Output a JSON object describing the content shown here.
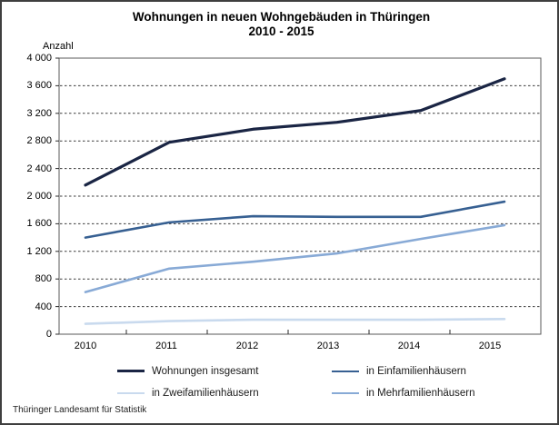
{
  "chart_data": {
    "type": "line",
    "title": "Wohnungen in neuen Wohngebäuden in Thüringen",
    "subtitle": "2010 - 2015",
    "ylabel": "Anzahl",
    "categories": [
      "2010",
      "2011",
      "2012",
      "2013",
      "2014",
      "2015"
    ],
    "ylim": [
      0,
      4000
    ],
    "ytick_step": 400,
    "ytick_labels": [
      "0",
      "400",
      "800",
      "1 200",
      "1 600",
      "2 000",
      "2 400",
      "2 800",
      "3 200",
      "3 600",
      "4 000"
    ],
    "grid": "horizontal dashed gridlines, plot area boxed",
    "legend_position": "bottom, 2 columns",
    "series": [
      {
        "name": "Wohnungen insgesamt",
        "color": "#1a2544",
        "line_width": 3.2,
        "values": [
          2160,
          2780,
          2970,
          3070,
          3240,
          3700
        ]
      },
      {
        "name": "in Einfamilienhäusern",
        "color": "#376092",
        "line_width": 2.6,
        "values": [
          1400,
          1620,
          1710,
          1700,
          1700,
          1920
        ]
      },
      {
        "name": "in Zweifamilienhäusern",
        "color": "#c9daee",
        "line_width": 2.6,
        "values": [
          150,
          190,
          210,
          210,
          210,
          220
        ]
      },
      {
        "name": "in Mehrfamilienhäusern",
        "color": "#88aad6",
        "line_width": 2.6,
        "values": [
          610,
          950,
          1050,
          1170,
          1380,
          1580
        ]
      }
    ],
    "legend_grid_order": [
      "Wohnungen insgesamt",
      "in Einfamilienhäusern",
      "in Zweifamilienhäusern",
      "in Mehrfamilienhäusern"
    ]
  },
  "footer": {
    "source": "Thüringer Landesamt für Statistik"
  },
  "style": {
    "gridline_color": "#3c3c3c",
    "plot_border_color": "#5a5a5a",
    "axis_color": "#2a2a2a"
  }
}
